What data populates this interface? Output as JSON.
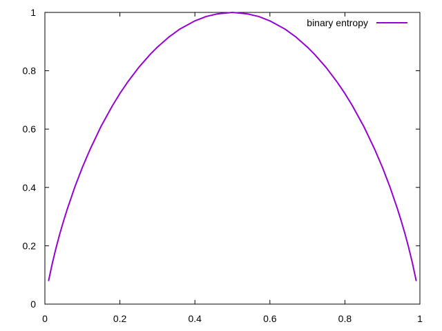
{
  "chart_data": {
    "type": "line",
    "title": "",
    "xlabel": "",
    "ylabel": "",
    "xlim": [
      0,
      1
    ],
    "ylim": [
      0,
      1
    ],
    "grid": false,
    "legend_position": "top-right",
    "x_ticks": [
      {
        "value": 0,
        "label": "0"
      },
      {
        "value": 0.2,
        "label": "0.2"
      },
      {
        "value": 0.4,
        "label": "0.4"
      },
      {
        "value": 0.6,
        "label": "0.6"
      },
      {
        "value": 0.8,
        "label": "0.8"
      },
      {
        "value": 1,
        "label": "1"
      }
    ],
    "y_ticks": [
      {
        "value": 0,
        "label": "0"
      },
      {
        "value": 0.2,
        "label": "0.2"
      },
      {
        "value": 0.4,
        "label": "0.4"
      },
      {
        "value": 0.6,
        "label": "0.6"
      },
      {
        "value": 0.8,
        "label": "0.8"
      },
      {
        "value": 1,
        "label": "1"
      }
    ],
    "series": [
      {
        "name": "binary entropy",
        "color": "#9400d3",
        "x": [
          0.01,
          0.02,
          0.03,
          0.04,
          0.05,
          0.06,
          0.08,
          0.1,
          0.12,
          0.15,
          0.18,
          0.2,
          0.22,
          0.25,
          0.28,
          0.3,
          0.33,
          0.36,
          0.4,
          0.43,
          0.46,
          0.5,
          0.54,
          0.57,
          0.6,
          0.64,
          0.67,
          0.7,
          0.72,
          0.75,
          0.78,
          0.8,
          0.82,
          0.85,
          0.88,
          0.9,
          0.92,
          0.94,
          0.95,
          0.96,
          0.97,
          0.98,
          0.99
        ],
        "y": [
          0.081,
          0.141,
          0.194,
          0.242,
          0.286,
          0.327,
          0.402,
          0.469,
          0.529,
          0.61,
          0.68,
          0.722,
          0.76,
          0.811,
          0.855,
          0.881,
          0.915,
          0.943,
          0.971,
          0.986,
          0.995,
          1.0,
          0.995,
          0.986,
          0.971,
          0.943,
          0.915,
          0.881,
          0.855,
          0.811,
          0.76,
          0.722,
          0.68,
          0.61,
          0.529,
          0.469,
          0.402,
          0.327,
          0.286,
          0.242,
          0.194,
          0.141,
          0.081
        ]
      }
    ]
  }
}
